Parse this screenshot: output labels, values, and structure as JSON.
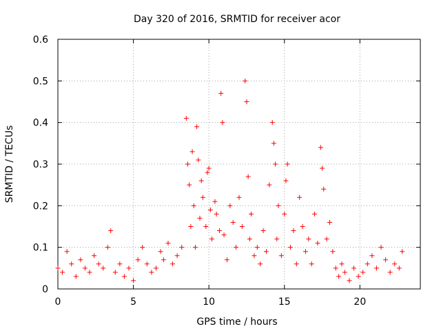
{
  "chart_data": {
    "type": "scatter",
    "title": "Day 320 of 2016, SRMTID for receiver acor",
    "xlabel": "GPS time / hours",
    "ylabel": "SRMTID / TECUs",
    "xlim": [
      0,
      24
    ],
    "ylim": [
      0,
      0.6
    ],
    "xticks": [
      0,
      5,
      10,
      15,
      20
    ],
    "xtick_labels": [
      "0",
      "5",
      "10",
      "15",
      "20"
    ],
    "yticks": [
      0,
      0.1,
      0.2,
      0.3,
      0.4,
      0.5,
      0.6
    ],
    "ytick_labels": [
      "0",
      "0.1",
      "0.2",
      "0.3",
      "0.4",
      "0.5",
      "0.6"
    ],
    "grid": true,
    "marker": "plus",
    "color": "#ff0000",
    "series": [
      {
        "name": "SRMTID",
        "x": [
          0.0,
          0.3,
          0.6,
          0.9,
          1.2,
          1.5,
          1.8,
          2.1,
          2.4,
          2.7,
          3.0,
          3.3,
          3.5,
          3.8,
          4.1,
          4.4,
          4.7,
          5.0,
          5.3,
          5.6,
          5.9,
          6.2,
          6.5,
          6.8,
          7.0,
          7.3,
          7.6,
          7.9,
          8.2,
          8.5,
          8.6,
          8.7,
          8.8,
          8.9,
          9.0,
          9.1,
          9.2,
          9.3,
          9.4,
          9.5,
          9.6,
          9.8,
          9.9,
          10.0,
          10.1,
          10.2,
          10.4,
          10.5,
          10.7,
          10.8,
          10.9,
          11.0,
          11.2,
          11.4,
          11.6,
          11.8,
          12.0,
          12.2,
          12.4,
          12.5,
          12.6,
          12.7,
          12.8,
          13.0,
          13.2,
          13.4,
          13.6,
          13.8,
          14.0,
          14.2,
          14.3,
          14.4,
          14.5,
          14.6,
          14.8,
          15.0,
          15.1,
          15.2,
          15.4,
          15.6,
          15.8,
          16.0,
          16.2,
          16.4,
          16.6,
          16.8,
          17.0,
          17.2,
          17.4,
          17.5,
          17.6,
          17.8,
          18.0,
          18.2,
          18.4,
          18.6,
          18.8,
          19.0,
          19.3,
          19.6,
          19.9,
          20.2,
          20.5,
          20.8,
          21.1,
          21.4,
          21.7,
          22.0,
          22.3,
          22.6,
          22.8
        ],
        "y": [
          0.05,
          0.04,
          0.09,
          0.06,
          0.03,
          0.07,
          0.05,
          0.04,
          0.08,
          0.06,
          0.05,
          0.1,
          0.14,
          0.04,
          0.06,
          0.03,
          0.05,
          0.02,
          0.07,
          0.1,
          0.06,
          0.04,
          0.05,
          0.09,
          0.07,
          0.11,
          0.06,
          0.08,
          0.1,
          0.41,
          0.3,
          0.25,
          0.15,
          0.33,
          0.2,
          0.1,
          0.39,
          0.31,
          0.17,
          0.26,
          0.22,
          0.15,
          0.28,
          0.29,
          0.19,
          0.12,
          0.21,
          0.18,
          0.14,
          0.47,
          0.4,
          0.13,
          0.07,
          0.2,
          0.16,
          0.1,
          0.22,
          0.15,
          0.5,
          0.45,
          0.27,
          0.12,
          0.18,
          0.08,
          0.1,
          0.06,
          0.14,
          0.09,
          0.25,
          0.4,
          0.35,
          0.3,
          0.12,
          0.2,
          0.08,
          0.18,
          0.26,
          0.3,
          0.1,
          0.14,
          0.06,
          0.22,
          0.15,
          0.09,
          0.12,
          0.06,
          0.18,
          0.11,
          0.34,
          0.29,
          0.24,
          0.12,
          0.16,
          0.09,
          0.05,
          0.03,
          0.06,
          0.04,
          0.02,
          0.05,
          0.03,
          0.04,
          0.06,
          0.08,
          0.05,
          0.1,
          0.07,
          0.04,
          0.06,
          0.05,
          0.09
        ]
      }
    ]
  }
}
